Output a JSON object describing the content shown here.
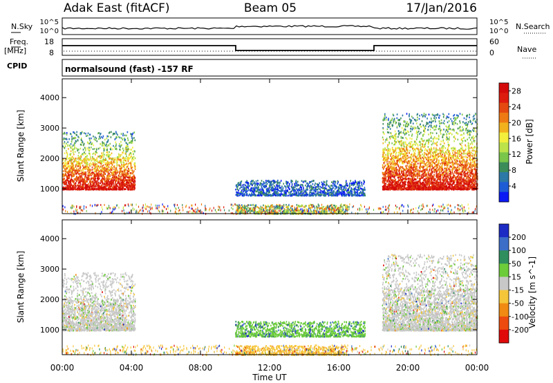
{
  "header": {
    "title": "Adak East (fitACF)",
    "beam": "Beam 05",
    "date": "17/Jan/2016"
  },
  "status_panels": {
    "nsky": {
      "label": "N.Sky",
      "right_label": "N.Search",
      "yticks_left": [
        "10^5",
        "10^0"
      ],
      "yticks_right": [
        "10^5",
        "10^0"
      ]
    },
    "freq": {
      "label": "Freq.",
      "unit": "[MHz]",
      "right_label": "Nave",
      "yticks_left": [
        "18",
        "8"
      ],
      "yticks_right": [
        "60",
        "0"
      ]
    },
    "cpid": {
      "label": "CPID",
      "text": "normalsound (fast) -157 RF"
    }
  },
  "chart_data": [
    {
      "type": "heatmap",
      "name": "power",
      "ylabel": "Slant Range [km]",
      "xlabel": "",
      "yticks": [
        1000,
        2000,
        3000,
        4000
      ],
      "ylim": [
        180,
        4620
      ],
      "xlim": [
        "00:00",
        "24:00"
      ],
      "colorbar": {
        "label": "Power [dB]",
        "ticks": [
          "4",
          "8",
          "12",
          "16",
          "20",
          "24",
          "28"
        ],
        "range": [
          0,
          30
        ],
        "colors": [
          "#0b19f5",
          "#1e5cd6",
          "#2c78a6",
          "#3c8c5a",
          "#7ac64a",
          "#bde34a",
          "#f4ef3c",
          "#f2b21e",
          "#ee7a14",
          "#e44a10",
          "#dd1c0e",
          "#d40a0a"
        ]
      },
      "echo_regions": [
        {
          "time_start": 0.0,
          "time_end": 4.2,
          "range_start": 1000,
          "range_end": 2900,
          "dominant": "strong"
        },
        {
          "time_start": 10.0,
          "time_end": 17.5,
          "range_start": 800,
          "range_end": 1300,
          "dominant": "weak"
        },
        {
          "time_start": 10.0,
          "time_end": 16.5,
          "range_start": 200,
          "range_end": 500,
          "dominant": "medium"
        },
        {
          "time_start": 18.5,
          "time_end": 24.0,
          "range_start": 1000,
          "range_end": 3500,
          "dominant": "strong"
        }
      ]
    },
    {
      "type": "heatmap",
      "name": "velocity",
      "ylabel": "Slant Range [km]",
      "xlabel": "Time UT",
      "yticks": [
        1000,
        2000,
        3000,
        4000
      ],
      "ylim": [
        180,
        4620
      ],
      "xticks": [
        "00:00",
        "04:00",
        "08:00",
        "12:00",
        "16:00",
        "20:00",
        "00:00"
      ],
      "xlim": [
        "00:00",
        "24:00"
      ],
      "colorbar": {
        "label": "Velocity [m s^-1]",
        "ticks": [
          "200",
          "100",
          "50",
          "15",
          "-15",
          "-50",
          "-100",
          "-200"
        ],
        "range": [
          -250,
          250
        ],
        "colors": [
          "#1c2bc4",
          "#3c6ec8",
          "#2e8e5e",
          "#6ccc3a",
          "#c8c8c8",
          "#f6c63a",
          "#f08a12",
          "#ec4a0e",
          "#e00a0a"
        ]
      },
      "echo_regions": [
        {
          "time_start": 0.0,
          "time_end": 4.2,
          "range_start": 1000,
          "range_end": 2900,
          "dominant": "low"
        },
        {
          "time_start": 10.0,
          "time_end": 17.5,
          "range_start": 800,
          "range_end": 1300,
          "dominant": "toward"
        },
        {
          "time_start": 10.0,
          "time_end": 16.5,
          "range_start": 200,
          "range_end": 500,
          "dominant": "away"
        },
        {
          "time_start": 18.5,
          "time_end": 24.0,
          "range_start": 1000,
          "range_end": 3500,
          "dominant": "low"
        }
      ]
    }
  ]
}
